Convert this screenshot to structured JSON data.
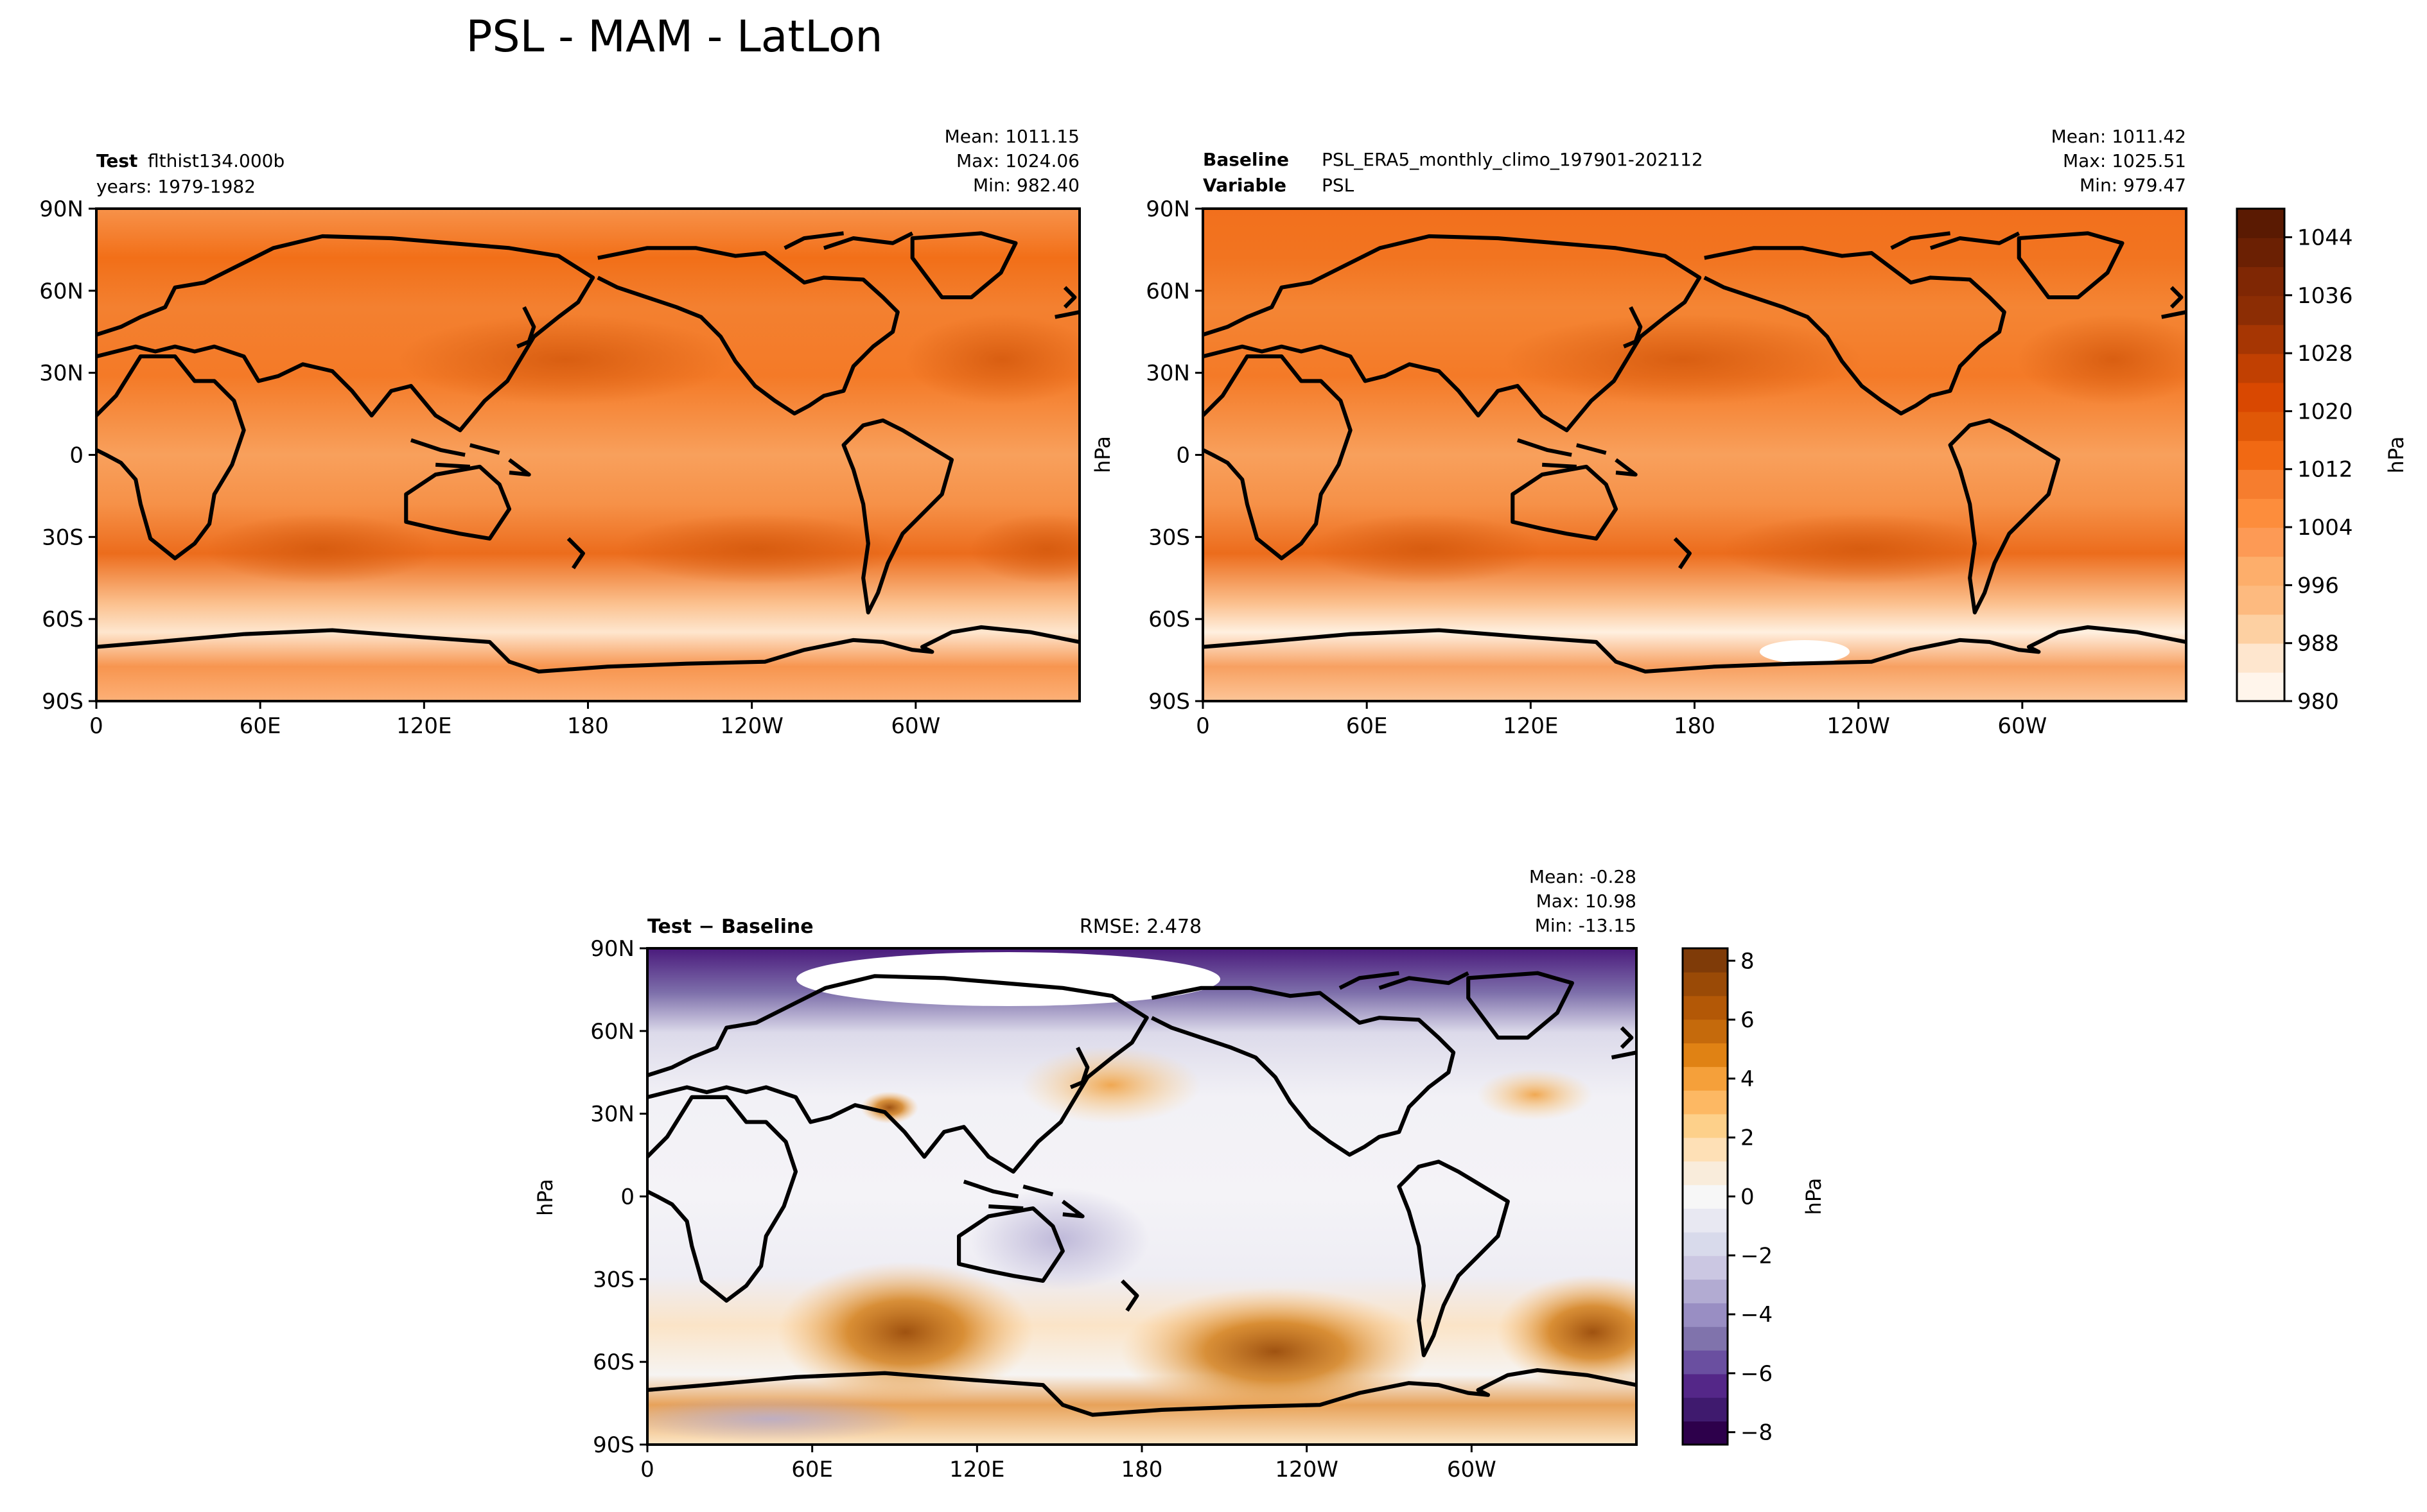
{
  "figure": {
    "title": "PSL - MAM - LatLon"
  },
  "chart_data": [
    {
      "type": "heatmap",
      "panel": "test",
      "label_bold": "Test",
      "label_value": "flthist134.000b",
      "line2_text": "years: 1979-1982",
      "stats": {
        "mean": "Mean: 1011.15",
        "max": "Max: 1024.06",
        "min": "Min: 982.40"
      },
      "x_ticks": [
        "0",
        "60E",
        "120E",
        "180",
        "120W",
        "60W"
      ],
      "y_ticks": [
        "90N",
        "60N",
        "30N",
        "0",
        "30S",
        "60S",
        "90S"
      ],
      "ylabel": "",
      "units": "hPa",
      "field_range": [
        980,
        1048
      ]
    },
    {
      "type": "heatmap",
      "panel": "baseline",
      "label_bold": "Baseline",
      "label_value": "PSL_ERA5_monthly_climo_197901-202112",
      "line2_bold": "Variable",
      "line2_value": "PSL",
      "stats": {
        "mean": "Mean: 1011.42",
        "max": "Max: 1025.51",
        "min": "Min: 979.47"
      },
      "x_ticks": [
        "0",
        "60E",
        "120E",
        "180",
        "120W",
        "60W"
      ],
      "y_ticks": [
        "90N",
        "60N",
        "30N",
        "0",
        "30S",
        "60S",
        "90S"
      ],
      "ylabel": "hPa",
      "units": "hPa",
      "colorbar": {
        "label": "hPa",
        "ticks": [
          "1044",
          "1036",
          "1028",
          "1020",
          "1012",
          "1004",
          "996",
          "988",
          "980"
        ],
        "colors": [
          "#fff5eb",
          "#fee6ce",
          "#fdd0a2",
          "#fdba7f",
          "#fdae6b",
          "#fd9a55",
          "#fd8d3c",
          "#f67d2e",
          "#f16913",
          "#e05807",
          "#d94801",
          "#c14002",
          "#a63603",
          "#8c2d04",
          "#7f2704",
          "#6b2003",
          "#5a1a02"
        ]
      }
    },
    {
      "type": "heatmap",
      "panel": "difference",
      "label": "Test − Baseline",
      "rmse": "RMSE: 2.478",
      "stats": {
        "mean": "Mean: -0.28",
        "max": "Max: 10.98",
        "min": "Min: -13.15"
      },
      "x_ticks": [
        "0",
        "60E",
        "120E",
        "180",
        "120W",
        "60W"
      ],
      "y_ticks": [
        "90N",
        "60N",
        "30N",
        "0",
        "30S",
        "60S",
        "90S"
      ],
      "ylabel": "hPa",
      "units": "hPa",
      "colorbar": {
        "label": "hPa",
        "ticks": [
          "8",
          "6",
          "4",
          "2",
          "0",
          "−2",
          "−4",
          "−6",
          "−8"
        ],
        "colors": [
          "#2d004b",
          "#3f1a6e",
          "#542788",
          "#6a4fa0",
          "#8073ac",
          "#998ec3",
          "#b2abd2",
          "#cbc7e2",
          "#d8daeb",
          "#e8e8f2",
          "#f7f7f7",
          "#f9ecdb",
          "#fee0b6",
          "#fdd08a",
          "#fdb863",
          "#f5a03a",
          "#e08214",
          "#c56a0c",
          "#b35806",
          "#9a4a06",
          "#7f3b08"
        ]
      }
    }
  ]
}
